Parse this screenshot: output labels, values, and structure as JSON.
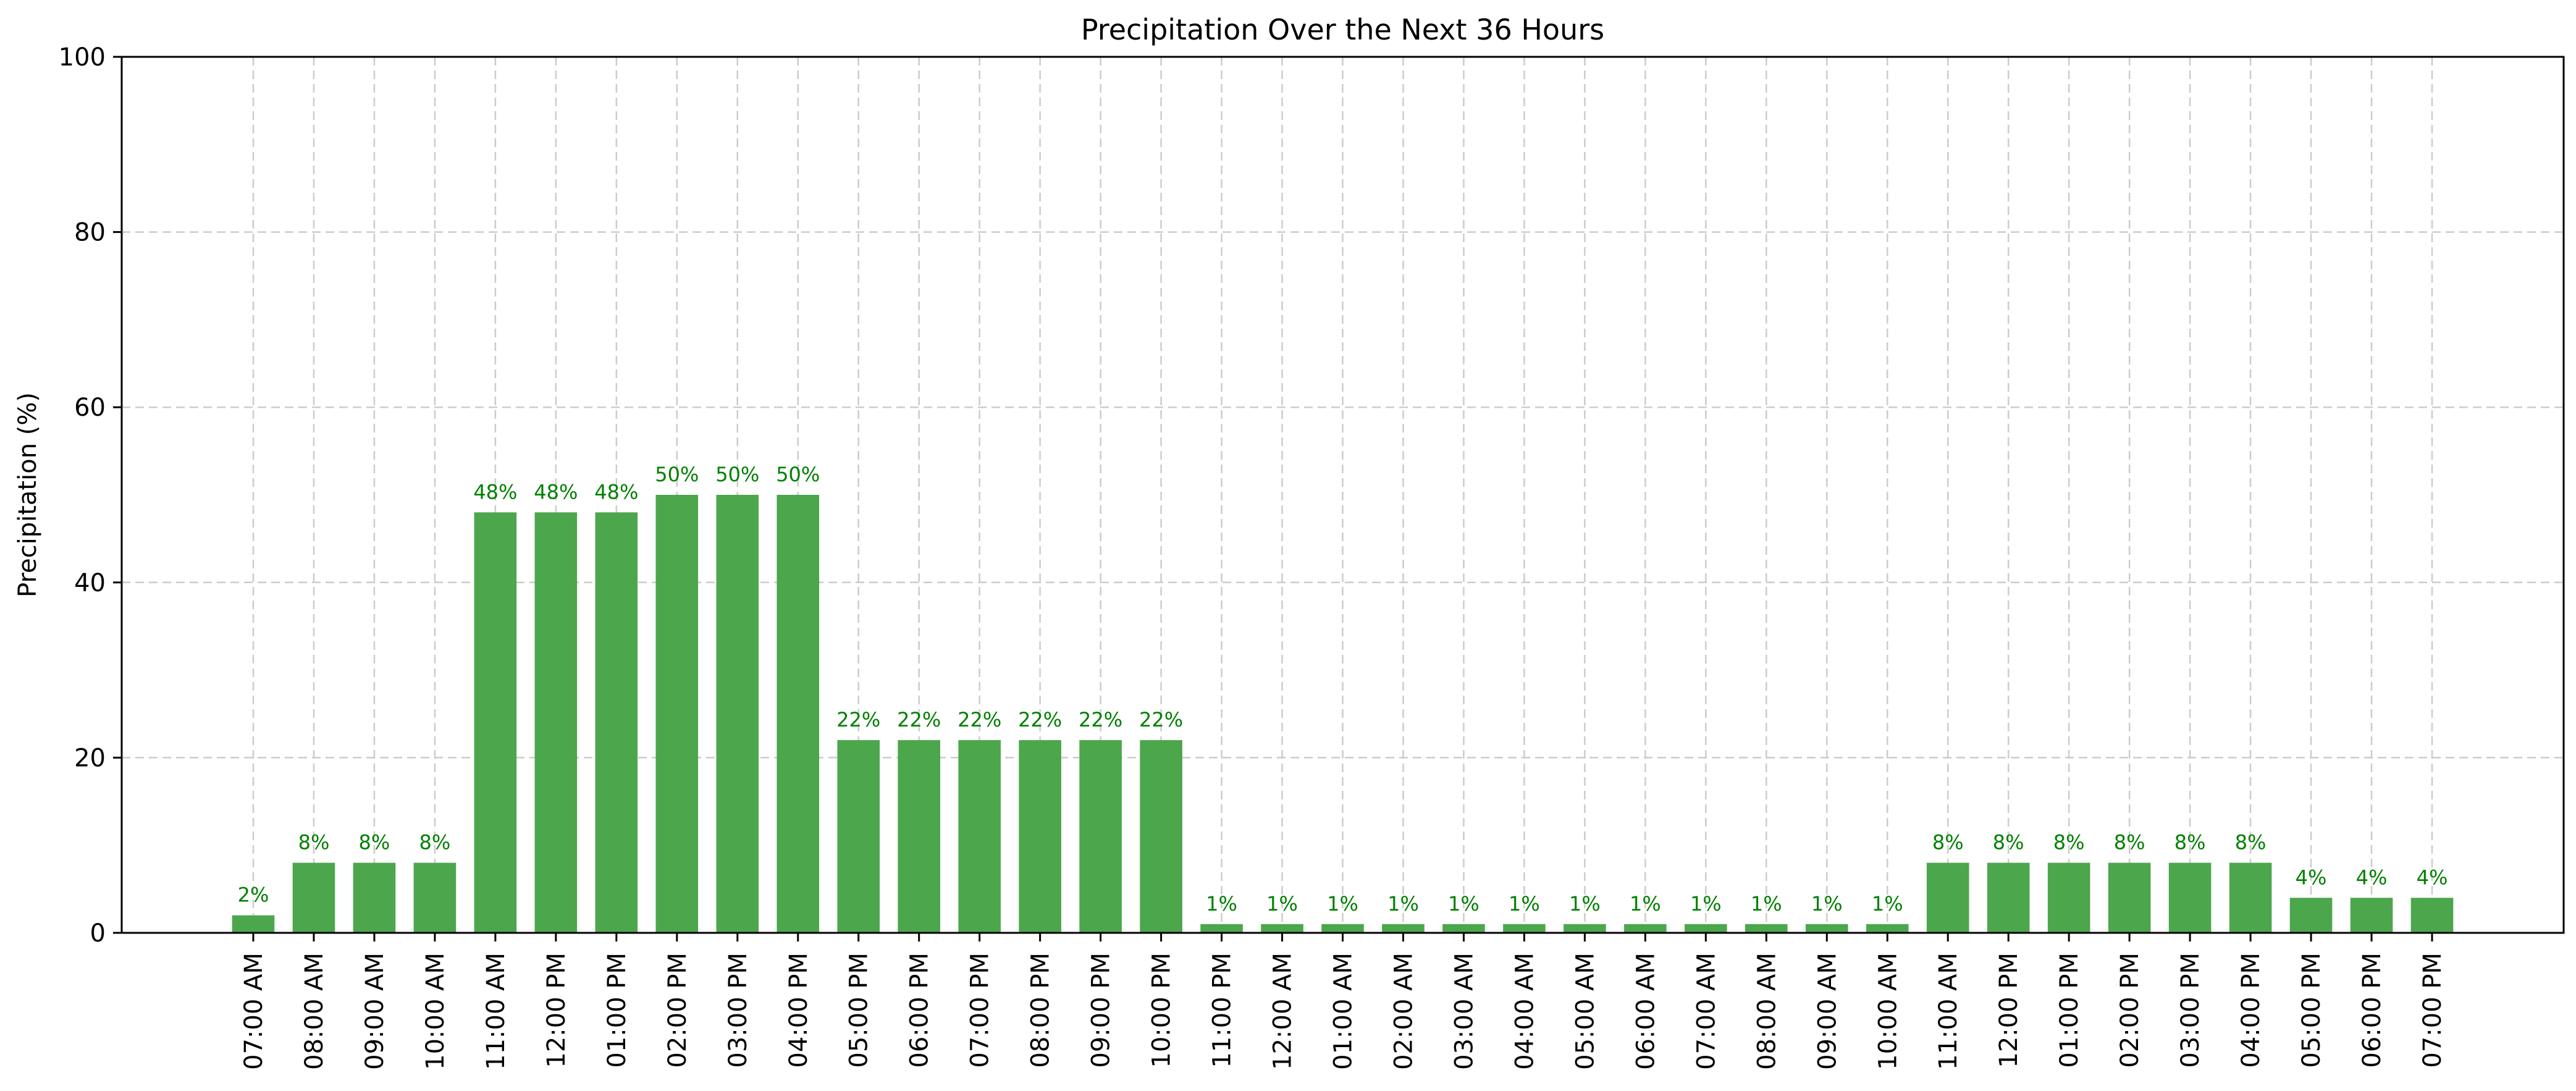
{
  "chart_data": {
    "type": "bar",
    "title": "Precipitation Over the Next 36 Hours",
    "xlabel": "",
    "ylabel": "Precipitation (%)",
    "ylim": [
      0,
      100
    ],
    "yticks": [
      0,
      20,
      40,
      60,
      80,
      100
    ],
    "grid": true,
    "bar_color": "#4ca64c",
    "label_color": "#008000",
    "value_suffix": "%",
    "categories": [
      "07:00 AM",
      "08:00 AM",
      "09:00 AM",
      "10:00 AM",
      "11:00 AM",
      "12:00 PM",
      "01:00 PM",
      "02:00 PM",
      "03:00 PM",
      "04:00 PM",
      "05:00 PM",
      "06:00 PM",
      "07:00 PM",
      "08:00 PM",
      "09:00 PM",
      "10:00 PM",
      "11:00 PM",
      "12:00 AM",
      "01:00 AM",
      "02:00 AM",
      "03:00 AM",
      "04:00 AM",
      "05:00 AM",
      "06:00 AM",
      "07:00 AM",
      "08:00 AM",
      "09:00 AM",
      "10:00 AM",
      "11:00 AM",
      "12:00 PM",
      "01:00 PM",
      "02:00 PM",
      "03:00 PM",
      "04:00 PM",
      "05:00 PM",
      "06:00 PM",
      "07:00 PM"
    ],
    "values": [
      2,
      8,
      8,
      8,
      48,
      48,
      48,
      50,
      50,
      50,
      22,
      22,
      22,
      22,
      22,
      22,
      1,
      1,
      1,
      1,
      1,
      1,
      1,
      1,
      1,
      1,
      1,
      1,
      8,
      8,
      8,
      8,
      8,
      8,
      4,
      4,
      4
    ]
  }
}
